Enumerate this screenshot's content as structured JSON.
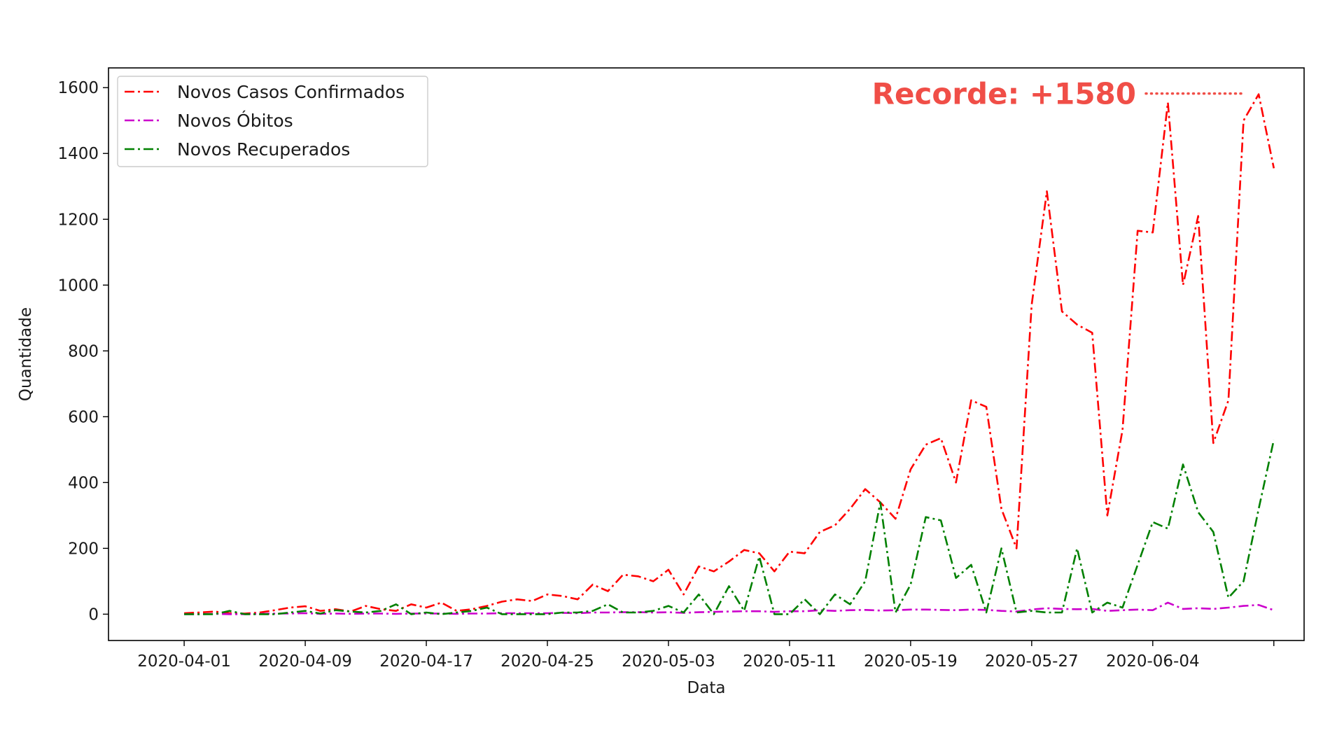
{
  "chart_data": {
    "type": "line",
    "title": "",
    "xlabel": "Data",
    "ylabel": "Quantidade",
    "x_start": "2020-04-01",
    "x_end": "2020-06-11",
    "xlim": [
      "2020-03-27",
      "2020-06-14"
    ],
    "ylim": [
      -80,
      1660
    ],
    "xticks": [
      "2020-04-01",
      "2020-04-09",
      "2020-04-17",
      "2020-04-25",
      "2020-05-03",
      "2020-05-11",
      "2020-05-19",
      "2020-05-27",
      "2020-06-04",
      "2020-06-12"
    ],
    "xtick_labels": [
      "2020-04-01",
      "2020-04-09",
      "2020-04-17",
      "2020-04-25",
      "2020-05-03",
      "2020-05-11",
      "2020-05-19",
      "2020-05-27",
      "2020-06-04",
      ""
    ],
    "yticks": [
      0,
      200,
      400,
      600,
      800,
      1000,
      1200,
      1400,
      1600
    ],
    "grid": false,
    "legend_position": "top-left",
    "series": [
      {
        "name": "Novos Casos Confirmados",
        "color": "#ff0000",
        "values": [
          3,
          5,
          8,
          3,
          2,
          5,
          12,
          20,
          24,
          10,
          15,
          8,
          25,
          15,
          10,
          30,
          20,
          35,
          10,
          15,
          25,
          38,
          45,
          40,
          60,
          55,
          45,
          90,
          70,
          120,
          115,
          100,
          135,
          60,
          145,
          130,
          160,
          195,
          185,
          130,
          190,
          185,
          250,
          270,
          320,
          380,
          340,
          290,
          440,
          515,
          535,
          400,
          650,
          630,
          320,
          200,
          940,
          1285,
          920,
          880,
          855,
          300,
          560,
          1165,
          1160,
          1555,
          1000,
          1210,
          520,
          650,
          1500,
          1580,
          1355
        ]
      },
      {
        "name": "Novos Óbitos",
        "color": "#cc00cc",
        "values": [
          0,
          0,
          1,
          0,
          0,
          1,
          2,
          2,
          3,
          1,
          2,
          1,
          2,
          2,
          1,
          2,
          2,
          2,
          1,
          2,
          2,
          3,
          3,
          3,
          3,
          4,
          3,
          5,
          5,
          6,
          6,
          5,
          6,
          4,
          6,
          7,
          8,
          9,
          9,
          7,
          9,
          9,
          12,
          10,
          12,
          13,
          11,
          12,
          14,
          14,
          13,
          12,
          14,
          13,
          10,
          8,
          14,
          18,
          16,
          15,
          16,
          10,
          12,
          14,
          12,
          35,
          16,
          18,
          16,
          20,
          25,
          28,
          12
        ]
      },
      {
        "name": "Novos Recuperados",
        "color": "#008000",
        "values": [
          0,
          0,
          0,
          10,
          0,
          0,
          0,
          5,
          10,
          2,
          12,
          8,
          5,
          10,
          30,
          0,
          5,
          0,
          5,
          10,
          20,
          0,
          0,
          0,
          0,
          5,
          5,
          10,
          30,
          5,
          5,
          10,
          25,
          5,
          60,
          0,
          85,
          10,
          175,
          0,
          0,
          45,
          0,
          60,
          30,
          100,
          340,
          5,
          90,
          295,
          285,
          110,
          150,
          5,
          200,
          5,
          10,
          5,
          5,
          200,
          5,
          35,
          20,
          150,
          280,
          260,
          455,
          310,
          250,
          50,
          100,
          320,
          530
        ]
      }
    ],
    "annotation": {
      "text": "Recorde: +1580",
      "color": "#f04e47",
      "value": 1580,
      "target_date": "2020-06-10"
    }
  }
}
